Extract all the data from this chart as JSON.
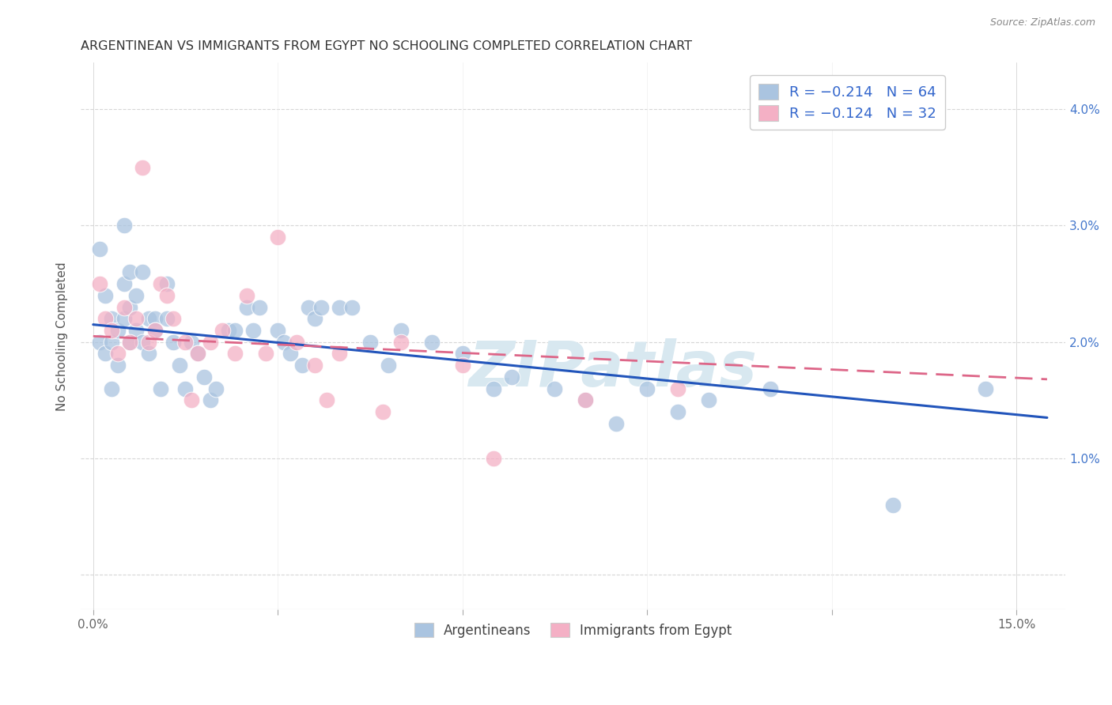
{
  "title": "ARGENTINEAN VS IMMIGRANTS FROM EGYPT NO SCHOOLING COMPLETED CORRELATION CHART",
  "source": "Source: ZipAtlas.com",
  "ylabel": "No Schooling Completed",
  "xlim": [
    -0.002,
    0.158
  ],
  "ylim": [
    -0.003,
    0.044
  ],
  "xticks": [
    0.0,
    0.03,
    0.06,
    0.09,
    0.12,
    0.15
  ],
  "xticklabels": [
    "0.0%",
    "",
    "",
    "",
    "",
    "15.0%"
  ],
  "yticks": [
    0.0,
    0.01,
    0.02,
    0.03,
    0.04
  ],
  "yticklabels_right": [
    "",
    "1.0%",
    "2.0%",
    "3.0%",
    "4.0%"
  ],
  "blue_color": "#aac4e0",
  "pink_color": "#f4b0c5",
  "line_blue_color": "#2255bb",
  "line_pink_color": "#dd6688",
  "watermark_color": "#d8e8f0",
  "grid_color": "#cccccc",
  "blue_x": [
    0.001,
    0.001,
    0.002,
    0.002,
    0.003,
    0.003,
    0.003,
    0.004,
    0.004,
    0.005,
    0.005,
    0.005,
    0.006,
    0.006,
    0.006,
    0.007,
    0.007,
    0.008,
    0.008,
    0.009,
    0.009,
    0.01,
    0.01,
    0.011,
    0.012,
    0.012,
    0.013,
    0.014,
    0.015,
    0.016,
    0.017,
    0.018,
    0.019,
    0.02,
    0.022,
    0.023,
    0.025,
    0.026,
    0.027,
    0.03,
    0.031,
    0.032,
    0.034,
    0.035,
    0.036,
    0.037,
    0.04,
    0.042,
    0.045,
    0.048,
    0.05,
    0.055,
    0.06,
    0.065,
    0.068,
    0.075,
    0.08,
    0.085,
    0.09,
    0.095,
    0.1,
    0.11,
    0.13,
    0.145
  ],
  "blue_y": [
    0.028,
    0.02,
    0.024,
    0.019,
    0.022,
    0.02,
    0.016,
    0.021,
    0.018,
    0.03,
    0.025,
    0.022,
    0.023,
    0.02,
    0.026,
    0.021,
    0.024,
    0.026,
    0.02,
    0.022,
    0.019,
    0.022,
    0.021,
    0.016,
    0.025,
    0.022,
    0.02,
    0.018,
    0.016,
    0.02,
    0.019,
    0.017,
    0.015,
    0.016,
    0.021,
    0.021,
    0.023,
    0.021,
    0.023,
    0.021,
    0.02,
    0.019,
    0.018,
    0.023,
    0.022,
    0.023,
    0.023,
    0.023,
    0.02,
    0.018,
    0.021,
    0.02,
    0.019,
    0.016,
    0.017,
    0.016,
    0.015,
    0.013,
    0.016,
    0.014,
    0.015,
    0.016,
    0.006,
    0.016
  ],
  "pink_x": [
    0.001,
    0.002,
    0.003,
    0.004,
    0.005,
    0.006,
    0.007,
    0.008,
    0.009,
    0.01,
    0.011,
    0.012,
    0.013,
    0.015,
    0.016,
    0.017,
    0.019,
    0.021,
    0.023,
    0.025,
    0.028,
    0.03,
    0.033,
    0.036,
    0.038,
    0.04,
    0.047,
    0.05,
    0.06,
    0.065,
    0.08,
    0.095
  ],
  "pink_y": [
    0.025,
    0.022,
    0.021,
    0.019,
    0.023,
    0.02,
    0.022,
    0.035,
    0.02,
    0.021,
    0.025,
    0.024,
    0.022,
    0.02,
    0.015,
    0.019,
    0.02,
    0.021,
    0.019,
    0.024,
    0.019,
    0.029,
    0.02,
    0.018,
    0.015,
    0.019,
    0.014,
    0.02,
    0.018,
    0.01,
    0.015,
    0.016
  ],
  "blue_line_x0": 0.0,
  "blue_line_y0": 0.0215,
  "blue_line_x1": 0.155,
  "blue_line_y1": 0.0135,
  "pink_line_x0": 0.0,
  "pink_line_y0": 0.0205,
  "pink_line_x1": 0.155,
  "pink_line_y1": 0.0168,
  "background_color": "#ffffff"
}
